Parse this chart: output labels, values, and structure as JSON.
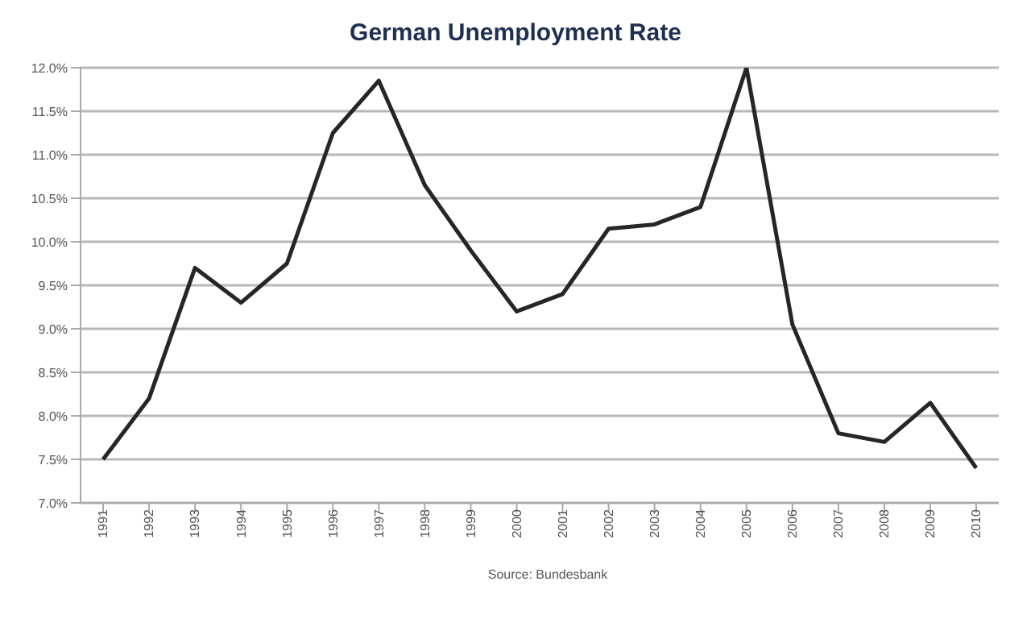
{
  "chart_data": {
    "type": "line",
    "title": "German Unemployment Rate",
    "categories": [
      "1991",
      "1992",
      "1993",
      "1994",
      "1995",
      "1996",
      "1997",
      "1998",
      "1999",
      "2000",
      "2001",
      "2002",
      "2003",
      "2004",
      "2005",
      "2006",
      "2007",
      "2008",
      "2009",
      "2010"
    ],
    "series": [
      {
        "color": "#262626",
        "values": [
          7.5,
          8.2,
          9.7,
          9.3,
          9.75,
          11.25,
          11.85,
          10.65,
          9.9,
          9.2,
          9.4,
          10.15,
          10.2,
          10.4,
          12.0,
          9.05,
          7.8,
          7.7,
          8.15,
          7.4
        ]
      }
    ],
    "ylim": [
      7,
      12
    ],
    "yticks": [
      {
        "value": 7,
        "label": "7.0%"
      },
      {
        "value": 7.5,
        "label": "7.5%"
      },
      {
        "value": 8,
        "label": "8.0%"
      },
      {
        "value": 8.5,
        "label": "8.5%"
      },
      {
        "value": 9,
        "label": "9.0%"
      },
      {
        "value": 9.5,
        "label": "9.5%"
      },
      {
        "value": 10,
        "label": "10.0%"
      },
      {
        "value": 10.5,
        "label": "10.5%"
      },
      {
        "value": 11,
        "label": "11.0%"
      },
      {
        "value": 11.5,
        "label": "11.5%"
      },
      {
        "value": 12,
        "label": "12.0%"
      }
    ],
    "grid": "y",
    "legend": false,
    "marker": "none",
    "line_style": "solid",
    "annotations": [
      "Source: Bundesbank"
    ]
  }
}
